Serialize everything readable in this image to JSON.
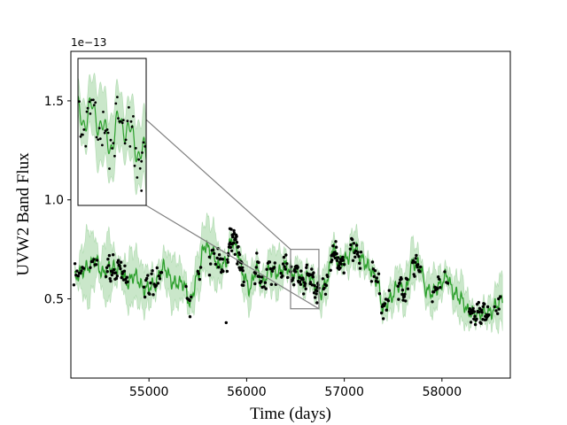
{
  "chart_data": {
    "type": "line",
    "title": "",
    "xlabel": "Time (days)",
    "ylabel": "UVW2 Band Flux",
    "y_offset_label": "1e−13",
    "xlim": [
      54200,
      58700
    ],
    "ylim": [
      0.1,
      1.75
    ],
    "xticks": [
      55000,
      56000,
      57000,
      58000
    ],
    "yticks": [
      0.5,
      1.0,
      1.5
    ],
    "ytick_labels": [
      "0.5",
      "1.0",
      "1.5"
    ],
    "colors": {
      "line": "#2ca02c",
      "band": "#2ca02c",
      "points": "#000000",
      "frame": "#808080"
    },
    "inset": {
      "xlim": [
        56450,
        56740
      ],
      "ylim": [
        0.45,
        0.75
      ]
    },
    "model_knots": [
      [
        54240,
        0.6
      ],
      [
        54300,
        0.64
      ],
      [
        54380,
        0.66
      ],
      [
        54450,
        0.7
      ],
      [
        54520,
        0.63
      ],
      [
        54600,
        0.66
      ],
      [
        54700,
        0.65
      ],
      [
        54780,
        0.58
      ],
      [
        54850,
        0.62
      ],
      [
        54950,
        0.55
      ],
      [
        55050,
        0.57
      ],
      [
        55150,
        0.66
      ],
      [
        55250,
        0.58
      ],
      [
        55350,
        0.58
      ],
      [
        55420,
        0.48
      ],
      [
        55500,
        0.62
      ],
      [
        55570,
        0.77
      ],
      [
        55650,
        0.73
      ],
      [
        55720,
        0.66
      ],
      [
        55780,
        0.68
      ],
      [
        55850,
        0.8
      ],
      [
        55900,
        0.75
      ],
      [
        55960,
        0.63
      ],
      [
        56030,
        0.55
      ],
      [
        56100,
        0.65
      ],
      [
        56160,
        0.58
      ],
      [
        56240,
        0.65
      ],
      [
        56320,
        0.63
      ],
      [
        56400,
        0.67
      ],
      [
        56460,
        0.63
      ],
      [
        56520,
        0.64
      ],
      [
        56580,
        0.58
      ],
      [
        56640,
        0.62
      ],
      [
        56700,
        0.57
      ],
      [
        56760,
        0.53
      ],
      [
        56830,
        0.6
      ],
      [
        56880,
        0.76
      ],
      [
        56950,
        0.68
      ],
      [
        57020,
        0.7
      ],
      [
        57100,
        0.76
      ],
      [
        57180,
        0.7
      ],
      [
        57250,
        0.66
      ],
      [
        57330,
        0.6
      ],
      [
        57400,
        0.45
      ],
      [
        57470,
        0.5
      ],
      [
        57550,
        0.57
      ],
      [
        57620,
        0.53
      ],
      [
        57700,
        0.68
      ],
      [
        57780,
        0.67
      ],
      [
        57830,
        0.55
      ],
      [
        57900,
        0.53
      ],
      [
        57980,
        0.57
      ],
      [
        58050,
        0.62
      ],
      [
        58120,
        0.53
      ],
      [
        58200,
        0.5
      ],
      [
        58260,
        0.44
      ],
      [
        58350,
        0.42
      ],
      [
        58420,
        0.43
      ],
      [
        58500,
        0.43
      ],
      [
        58560,
        0.47
      ],
      [
        58620,
        0.5
      ]
    ],
    "band_knots": [
      [
        54240,
        0.03
      ],
      [
        54380,
        0.2
      ],
      [
        54500,
        0.06
      ],
      [
        54560,
        0.19
      ],
      [
        54700,
        0.05
      ],
      [
        54800,
        0.15
      ],
      [
        54950,
        0.12
      ],
      [
        55100,
        0.06
      ],
      [
        55250,
        0.14
      ],
      [
        55400,
        0.06
      ],
      [
        55500,
        0.12
      ],
      [
        55650,
        0.16
      ],
      [
        55800,
        0.04
      ],
      [
        55900,
        0.05
      ],
      [
        56000,
        0.12
      ],
      [
        56150,
        0.06
      ],
      [
        56300,
        0.13
      ],
      [
        56450,
        0.04
      ],
      [
        56550,
        0.08
      ],
      [
        56650,
        0.06
      ],
      [
        56800,
        0.1
      ],
      [
        56950,
        0.04
      ],
      [
        57100,
        0.1
      ],
      [
        57250,
        0.05
      ],
      [
        57400,
        0.06
      ],
      [
        57550,
        0.1
      ],
      [
        57700,
        0.12
      ],
      [
        57800,
        0.05
      ],
      [
        57900,
        0.12
      ],
      [
        58050,
        0.05
      ],
      [
        58200,
        0.12
      ],
      [
        58350,
        0.04
      ],
      [
        58500,
        0.07
      ],
      [
        58620,
        0.15
      ]
    ],
    "observation_segments": [
      {
        "x0": 54230,
        "x1": 54330,
        "n": 10,
        "noise": 0.04
      },
      {
        "x0": 54400,
        "x1": 54470,
        "n": 7,
        "noise": 0.04
      },
      {
        "x0": 54560,
        "x1": 54780,
        "n": 34,
        "noise": 0.05
      },
      {
        "x0": 54950,
        "x1": 55130,
        "n": 20,
        "noise": 0.05
      },
      {
        "x0": 55380,
        "x1": 55430,
        "n": 5,
        "noise": 0.04
      },
      {
        "x0": 55500,
        "x1": 55530,
        "n": 4,
        "noise": 0.04
      },
      {
        "x0": 55620,
        "x1": 55680,
        "n": 6,
        "noise": 0.04
      },
      {
        "x0": 55700,
        "x1": 55760,
        "n": 10,
        "noise": 0.06
      },
      {
        "x0": 55800,
        "x1": 55970,
        "n": 45,
        "noise": 0.06
      },
      {
        "x0": 56080,
        "x1": 56160,
        "n": 14,
        "noise": 0.05
      },
      {
        "x0": 56180,
        "x1": 56300,
        "n": 14,
        "noise": 0.05
      },
      {
        "x0": 56350,
        "x1": 56420,
        "n": 10,
        "noise": 0.04
      },
      {
        "x0": 56450,
        "x1": 56740,
        "n": 55,
        "noise": 0.04
      },
      {
        "x0": 56780,
        "x1": 56830,
        "n": 8,
        "noise": 0.04
      },
      {
        "x0": 56860,
        "x1": 57000,
        "n": 30,
        "noise": 0.05
      },
      {
        "x0": 57060,
        "x1": 57170,
        "n": 16,
        "noise": 0.04
      },
      {
        "x0": 57280,
        "x1": 57360,
        "n": 10,
        "noise": 0.04
      },
      {
        "x0": 57380,
        "x1": 57460,
        "n": 10,
        "noise": 0.05
      },
      {
        "x0": 57550,
        "x1": 57650,
        "n": 18,
        "noise": 0.05
      },
      {
        "x0": 57700,
        "x1": 57780,
        "n": 14,
        "noise": 0.05
      },
      {
        "x0": 57900,
        "x1": 57980,
        "n": 10,
        "noise": 0.04
      },
      {
        "x0": 58030,
        "x1": 58060,
        "n": 3,
        "noise": 0.03
      },
      {
        "x0": 58280,
        "x1": 58480,
        "n": 36,
        "noise": 0.04
      },
      {
        "x0": 58540,
        "x1": 58600,
        "n": 5,
        "noise": 0.03
      }
    ],
    "isolated_points": [
      [
        55420,
        0.41
      ],
      [
        55620,
        0.62
      ],
      [
        55790,
        0.38
      ],
      [
        56720,
        0.48
      ],
      [
        57400,
        0.4
      ],
      [
        58580,
        0.5
      ]
    ]
  }
}
